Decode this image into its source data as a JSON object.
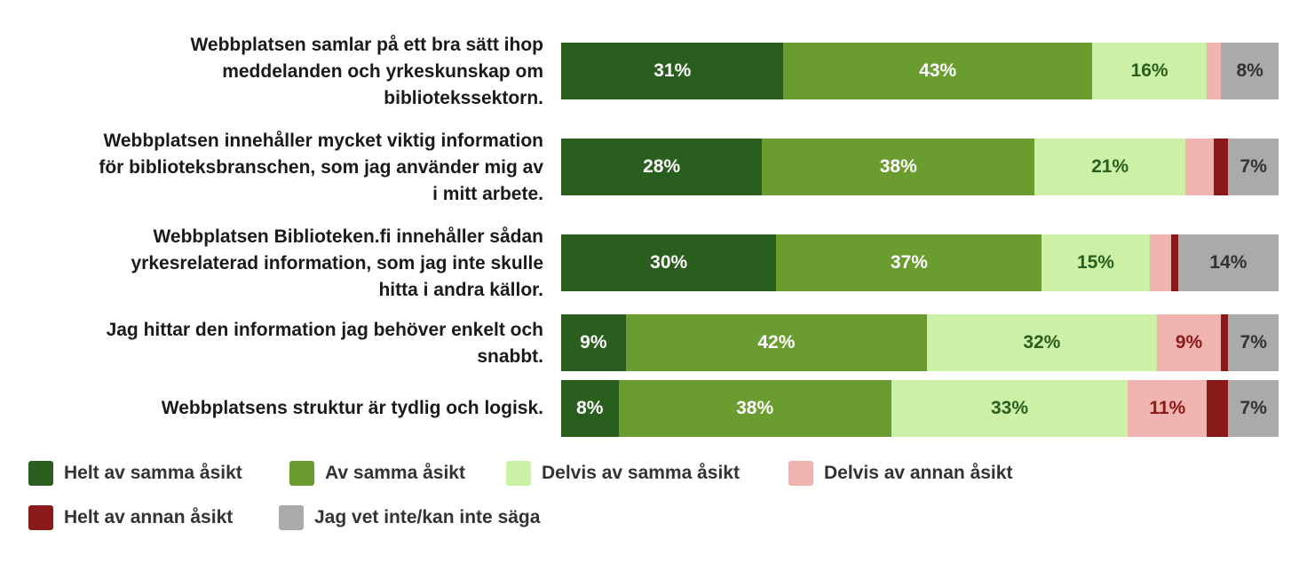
{
  "chart_data": {
    "type": "bar",
    "orientation": "horizontal",
    "stacked": true,
    "percent": true,
    "categories": [
      "Webbplatsen samlar på ett bra sätt ihop meddelanden och yrkeskunskap om bibliotekssektorn.",
      "Webbplatsen innehåller mycket viktig information för biblioteksbranschen, som jag använder mig av i mitt arbete.",
      "Webbplatsen Biblioteken.fi innehåller sådan yrkesrelaterad information, som jag inte skulle hitta i andra källor.",
      "Jag hittar den information jag behöver enkelt och snabbt.",
      "Webbplatsens struktur är tydlig och logisk."
    ],
    "category_lines": [
      [
        "Webbplatsen samlar på ett bra sätt ihop",
        "meddelanden och yrkeskunskap om",
        "bibliotekssektorn."
      ],
      [
        "Webbplatsen innehåller mycket viktig information",
        "för biblioteksbranschen, som jag använder mig av",
        "i mitt arbete."
      ],
      [
        "Webbplatsen Biblioteken.fi innehåller sådan",
        "yrkesrelaterad information, som jag inte skulle",
        "hitta i andra källor."
      ],
      [
        "Jag hittar den information jag behöver enkelt och",
        "snabbt."
      ],
      [
        "Webbplatsens struktur är tydlig och logisk."
      ]
    ],
    "series": [
      {
        "name": "Helt av samma åsikt",
        "color": "#2a5e1e",
        "label_color": "#ffffff",
        "values": [
          31,
          28,
          30,
          9,
          8
        ]
      },
      {
        "name": "Av samma åsikt",
        "color": "#6a9c2f",
        "label_color": "#ffffff",
        "values": [
          43,
          38,
          37,
          42,
          38
        ]
      },
      {
        "name": "Delvis av samma åsikt",
        "color": "#ccf0a6",
        "label_color": "#2a5e1e",
        "values": [
          16,
          21,
          15,
          32,
          33
        ]
      },
      {
        "name": "Delvis av annan åsikt",
        "color": "#f0b4b0",
        "label_color": "#8b1a1a",
        "values": [
          2,
          4,
          3,
          9,
          11
        ]
      },
      {
        "name": "Helt av annan åsikt",
        "color": "#8b1a1a",
        "label_color": "#ffffff",
        "values": [
          0,
          2,
          1,
          1,
          3
        ]
      },
      {
        "name": "Jag vet inte/kan inte säga",
        "color": "#aaaaaa",
        "label_color": "#333333",
        "values": [
          8,
          7,
          14,
          7,
          7
        ]
      }
    ],
    "labels": [
      [
        "31%",
        "43%",
        "16%",
        "",
        "",
        "8%"
      ],
      [
        "28%",
        "38%",
        "21%",
        "",
        "",
        "7%"
      ],
      [
        "30%",
        "37%",
        "15%",
        "",
        "",
        "14%"
      ],
      [
        "9%",
        "42%",
        "32%",
        "9%",
        "",
        "7%"
      ],
      [
        "8%",
        "38%",
        "33%",
        "11%",
        "",
        "7%"
      ]
    ],
    "xlim": [
      0,
      100
    ],
    "legend_position": "bottom",
    "grid": false
  },
  "legend": {
    "items": [
      {
        "label": "Helt av samma åsikt",
        "color": "#2a5e1e"
      },
      {
        "label": "Av samma åsikt",
        "color": "#6a9c2f"
      },
      {
        "label": "Delvis av samma åsikt",
        "color": "#ccf0a6"
      },
      {
        "label": "Delvis av annan åsikt",
        "color": "#f0b4b0"
      },
      {
        "label": "Helt av annan åsikt",
        "color": "#8b1a1a"
      },
      {
        "label": "Jag vet inte/kan inte säga",
        "color": "#aaaaaa"
      }
    ]
  }
}
